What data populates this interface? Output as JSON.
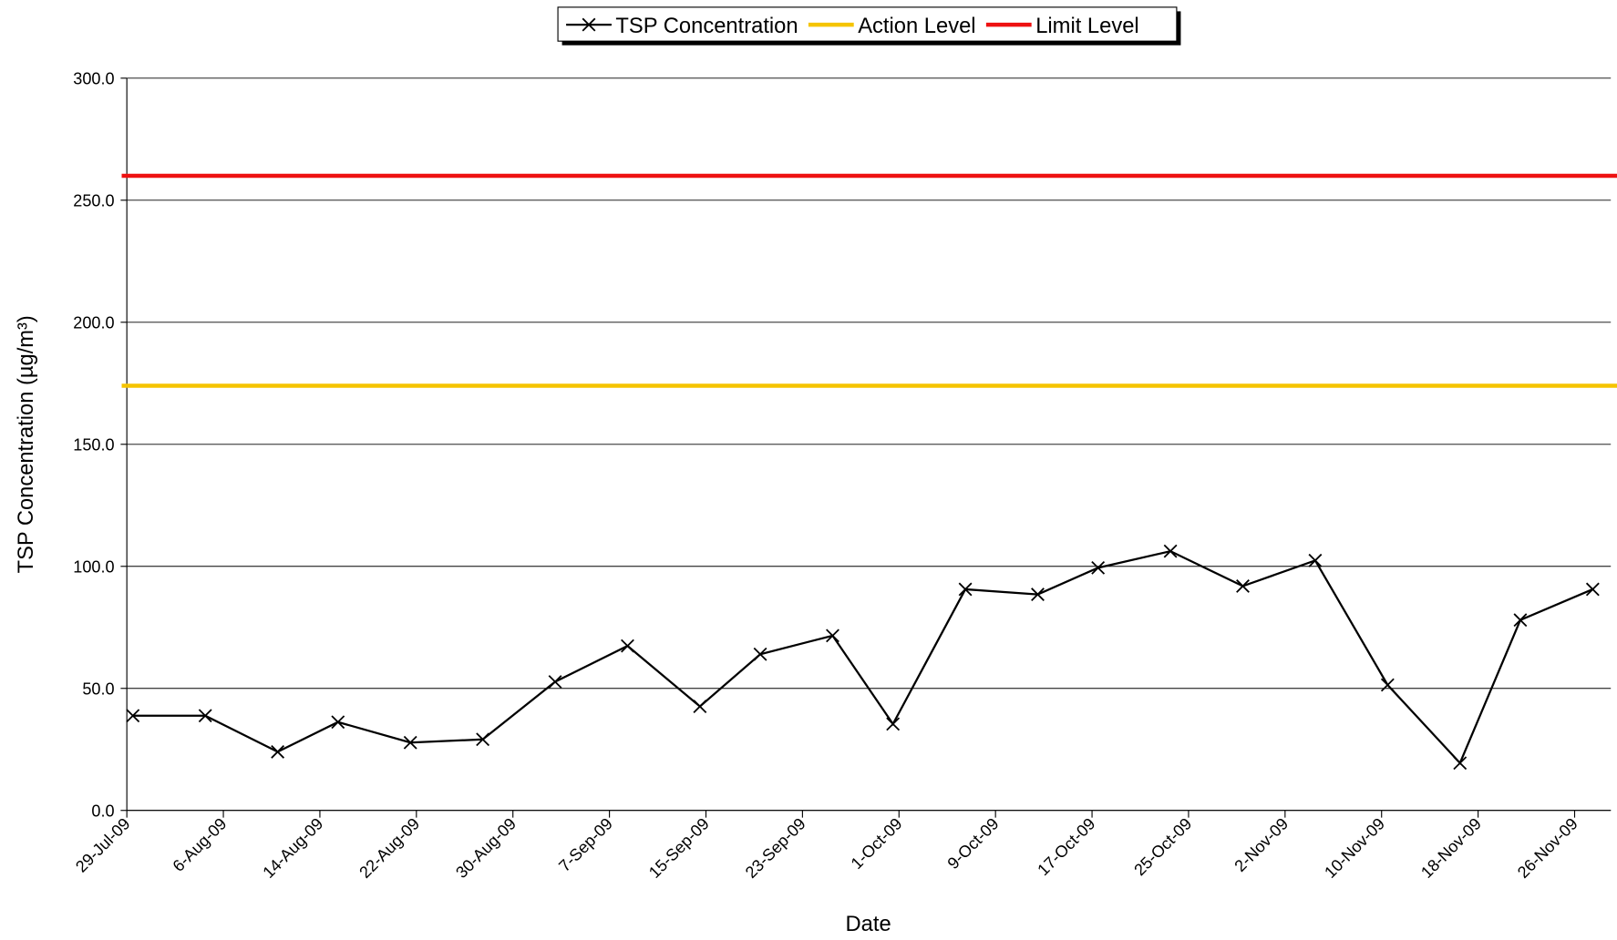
{
  "chart_data": {
    "type": "line",
    "x_label": "Date",
    "y_label": "TSP Concentration (µg/m³)",
    "x": [
      "29-Jul-09",
      "4-Aug-09",
      "10-Aug-09",
      "15-Aug-09",
      "21-Aug-09",
      "27-Aug-09",
      "2-Sep-09",
      "8-Sep-09",
      "14-Sep-09",
      "19-Sep-09",
      "25-Sep-09",
      "30-Sep-09",
      "6-Oct-09",
      "12-Oct-09",
      "17-Oct-09",
      "23-Oct-09",
      "29-Oct-09",
      "4-Nov-09",
      "10-Nov-09",
      "16-Nov-09",
      "21-Nov-09",
      "27-Nov-09"
    ],
    "series": [
      {
        "name": "TSP Concentration",
        "color": "#000000",
        "values": [
          38.8,
          38.8,
          24.0,
          36.2,
          27.8,
          29.1,
          52.7,
          67.4,
          42.6,
          64.0,
          71.6,
          35.4,
          90.6,
          88.5,
          99.4,
          106.2,
          91.9,
          102.4,
          51.4,
          19.4,
          78.0,
          90.6
        ]
      }
    ],
    "reference_lines": [
      {
        "name": "Action Level",
        "color": "#f5c400",
        "value": 174
      },
      {
        "name": "Limit Level",
        "color": "#ee1111",
        "value": 260
      }
    ],
    "xlim": [
      "29-Jul-09",
      "29-Nov-09"
    ],
    "xticks": [
      "29-Jul-09",
      "6-Aug-09",
      "14-Aug-09",
      "22-Aug-09",
      "30-Aug-09",
      "7-Sep-09",
      "15-Sep-09",
      "23-Sep-09",
      "1-Oct-09",
      "9-Oct-09",
      "17-Oct-09",
      "25-Oct-09",
      "2-Nov-09",
      "10-Nov-09",
      "18-Nov-09",
      "26-Nov-09"
    ],
    "ylim": [
      0,
      300
    ],
    "yticks": [
      {
        "value": 0,
        "label": "0.0"
      },
      {
        "value": 50,
        "label": "50.0"
      },
      {
        "value": 100,
        "label": "100.0"
      },
      {
        "value": 150,
        "label": "150.0"
      },
      {
        "value": 200,
        "label": "200.0"
      },
      {
        "value": 250,
        "label": "250.0"
      },
      {
        "value": 300,
        "label": "300.0"
      }
    ],
    "grid": true,
    "legend": "top"
  }
}
